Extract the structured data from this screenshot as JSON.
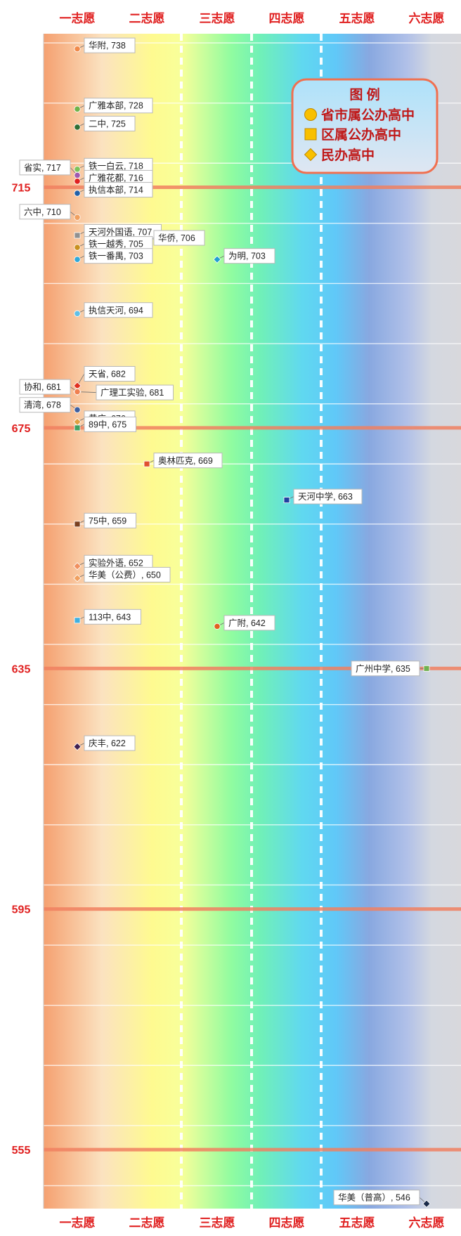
{
  "chart_data": {
    "type": "scatter",
    "title": "",
    "xlabel": "",
    "ylabel": "",
    "categories": [
      "一志愿",
      "二志愿",
      "三志愿",
      "四志愿",
      "五志愿",
      "六志愿"
    ],
    "ylim": [
      543,
      742
    ],
    "y_ticks": [
      715,
      675,
      635,
      595,
      555
    ],
    "legend": {
      "title": "图 例",
      "position": "top-right",
      "entries": [
        {
          "label": "省市属公办高中",
          "marker": "circle"
        },
        {
          "label": "区属公办高中",
          "marker": "square"
        },
        {
          "label": "民办高中",
          "marker": "diamond"
        }
      ]
    },
    "points": [
      {
        "name": "华附",
        "x": "一志愿",
        "y": 738,
        "color": "#f08a4b",
        "marker": "circle"
      },
      {
        "name": "广雅本部",
        "x": "一志愿",
        "y": 728,
        "color": "#6fb24a",
        "marker": "circle"
      },
      {
        "name": "二中",
        "x": "一志愿",
        "y": 725,
        "color": "#2f6e34",
        "marker": "circle"
      },
      {
        "name": "铁一白云",
        "x": "一志愿",
        "y": 718,
        "color": "#7cc25a",
        "marker": "circle"
      },
      {
        "name": "省实",
        "x": "一志愿",
        "y": 717,
        "color": "#a05ab0",
        "marker": "circle"
      },
      {
        "name": "广雅花都",
        "x": "一志愿",
        "y": 716,
        "color": "#e02020",
        "marker": "circle"
      },
      {
        "name": "执信本部",
        "x": "一志愿",
        "y": 714,
        "color": "#2060a8",
        "marker": "circle"
      },
      {
        "name": "六中",
        "x": "一志愿",
        "y": 710,
        "color": "#f0a060",
        "marker": "circle"
      },
      {
        "name": "天河外国语",
        "x": "一志愿",
        "y": 707,
        "color": "#909090",
        "marker": "square"
      },
      {
        "name": "华侨",
        "x": "二志愿",
        "y": 706,
        "color": "#20a0c0",
        "marker": "circle"
      },
      {
        "name": "铁一越秀",
        "x": "一志愿",
        "y": 705,
        "color": "#c89020",
        "marker": "circle"
      },
      {
        "name": "铁一番禺",
        "x": "一志愿",
        "y": 703,
        "color": "#30a8d8",
        "marker": "circle"
      },
      {
        "name": "为明",
        "x": "三志愿",
        "y": 703,
        "color": "#20a0d0",
        "marker": "diamond"
      },
      {
        "name": "执信天河",
        "x": "一志愿",
        "y": 694,
        "color": "#60c0e8",
        "marker": "circle"
      },
      {
        "name": "天省",
        "x": "一志愿",
        "y": 682,
        "color": "#e03020",
        "marker": "diamond"
      },
      {
        "name": "广理工实验",
        "x": "一志愿",
        "y": 681,
        "color": "#4070c0",
        "marker": "diamond"
      },
      {
        "name": "协和",
        "x": "一志愿",
        "y": 681,
        "color": "#f08050",
        "marker": "circle"
      },
      {
        "name": "清湾",
        "x": "一志愿",
        "y": 678,
        "color": "#4060a0",
        "marker": "circle"
      },
      {
        "name": "黄广",
        "x": "一志愿",
        "y": 676,
        "color": "#e0a040",
        "marker": "diamond"
      },
      {
        "name": "89中",
        "x": "一志愿",
        "y": 675,
        "color": "#40a060",
        "marker": "square"
      },
      {
        "name": "奥林匹克",
        "x": "二志愿",
        "y": 669,
        "color": "#e05030",
        "marker": "square"
      },
      {
        "name": "天河中学",
        "x": "四志愿",
        "y": 663,
        "color": "#2040a0",
        "marker": "square"
      },
      {
        "name": "75中",
        "x": "一志愿",
        "y": 659,
        "color": "#7a4020",
        "marker": "square"
      },
      {
        "name": "实验外语",
        "x": "一志愿",
        "y": 652,
        "color": "#f09060",
        "marker": "diamond"
      },
      {
        "name": "华美（公费）",
        "x": "一志愿",
        "y": 650,
        "color": "#f0a060",
        "marker": "diamond"
      },
      {
        "name": "113中",
        "x": "一志愿",
        "y": 643,
        "color": "#40b0e0",
        "marker": "square"
      },
      {
        "name": "广附",
        "x": "三志愿",
        "y": 642,
        "color": "#e06020",
        "marker": "circle"
      },
      {
        "name": "广州中学",
        "x": "六志愿",
        "y": 635,
        "color": "#70b050",
        "marker": "square"
      },
      {
        "name": "庆丰",
        "x": "一志愿",
        "y": 622,
        "color": "#402050",
        "marker": "diamond"
      },
      {
        "name": "华美（普高）",
        "x": "六志愿",
        "y": 546,
        "color": "#1a2a4a",
        "marker": "diamond"
      }
    ]
  },
  "colors": {
    "axis_text": "#e02020",
    "reference_line": "#f08060",
    "legend_border": "#f07050"
  }
}
